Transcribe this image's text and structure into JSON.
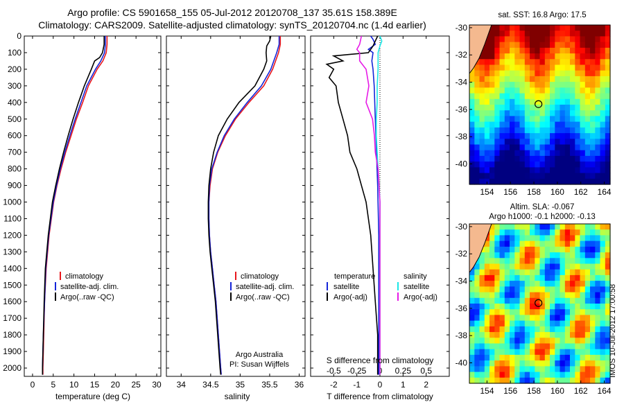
{
  "title": {
    "line1": "Argo profile: CS 5901658_155 05-Jul-2012 20120708_137 35.61S 158.389E",
    "line2": "Climatology: CARS2009. Satellite-adjusted climatology: synTS_20120704.nc (1.4d earlier)"
  },
  "colors": {
    "climatology": "#e8161b",
    "satellite": "#1424d8",
    "argo": "#000000",
    "s_satellite": "#19e6e6",
    "s_argo": "#e61ae6"
  },
  "chart_data": [
    {
      "type": "line",
      "name": "temperature-profile",
      "xlabel": "temperature (deg C)",
      "ylabel": "",
      "xlim": [
        -2,
        31
      ],
      "ylim": [
        2050,
        0
      ],
      "xticks": [
        0,
        5,
        10,
        15,
        20,
        25,
        30
      ],
      "yticks": [
        0,
        100,
        200,
        300,
        400,
        500,
        600,
        700,
        800,
        900,
        1000,
        1100,
        1200,
        1300,
        1400,
        1500,
        1600,
        1700,
        1800,
        1900,
        2000
      ],
      "legend": [
        "climatology",
        "satellite-adj. clim.",
        "Argo(..raw -QC)"
      ],
      "series": [
        {
          "name": "climatology",
          "depth": [
            0,
            50,
            100,
            150,
            200,
            300,
            400,
            500,
            600,
            700,
            800,
            900,
            1000,
            1200,
            1400,
            1600,
            1800,
            2000,
            2040
          ],
          "values": [
            18.0,
            18.0,
            17.8,
            17.0,
            15.6,
            13.5,
            12.1,
            10.6,
            9.3,
            8.0,
            6.9,
            5.9,
            5.1,
            4.0,
            3.3,
            2.9,
            2.7,
            2.5,
            2.5
          ]
        },
        {
          "name": "satellite-adj. clim.",
          "depth": [
            0,
            50,
            100,
            150,
            200,
            300,
            400,
            500,
            600,
            700,
            800,
            900,
            1000,
            1200,
            1400,
            1600,
            1800,
            2000,
            2040
          ],
          "values": [
            17.6,
            17.6,
            17.4,
            16.5,
            15.2,
            13.1,
            11.7,
            10.3,
            9.0,
            7.8,
            6.7,
            5.8,
            5.0,
            3.9,
            3.2,
            2.9,
            2.6,
            2.4,
            2.4
          ]
        },
        {
          "name": "Argo(..raw -QC)",
          "depth": [
            0,
            50,
            100,
            130,
            150,
            200,
            300,
            400,
            500,
            600,
            700,
            800,
            900,
            1000,
            1200,
            1400,
            1600,
            1800,
            2000,
            2040
          ],
          "values": [
            17.3,
            17.3,
            16.9,
            16.2,
            15.0,
            14.2,
            12.5,
            11.1,
            9.8,
            8.6,
            7.5,
            6.5,
            5.6,
            4.8,
            3.8,
            3.1,
            2.8,
            2.6,
            2.4,
            2.4
          ]
        }
      ]
    },
    {
      "type": "line",
      "name": "salinity-profile",
      "xlabel": "salinity",
      "xlim": [
        33.75,
        36.1
      ],
      "ylim": [
        2050,
        0
      ],
      "xticks": [
        34,
        34.5,
        35,
        35.5,
        36
      ],
      "legend": [
        "climatology",
        "satellite-adj. clim.",
        "Argo(..raw -QC)"
      ],
      "annotation": [
        "Argo Australia",
        "PI: Susan Wijffels"
      ],
      "series": [
        {
          "name": "climatology",
          "depth": [
            0,
            50,
            100,
            200,
            300,
            400,
            500,
            600,
            700,
            800,
            900,
            1000,
            1100,
            1200,
            1300,
            1400,
            1500,
            1600,
            1800,
            2000,
            2040
          ],
          "values": [
            35.68,
            35.68,
            35.65,
            35.55,
            35.4,
            35.15,
            34.92,
            34.75,
            34.62,
            34.53,
            34.49,
            34.47,
            34.47,
            34.48,
            34.5,
            34.53,
            34.56,
            34.59,
            34.63,
            34.67,
            34.68
          ]
        },
        {
          "name": "satellite-adj. clim.",
          "depth": [
            0,
            50,
            100,
            200,
            300,
            400,
            500,
            600,
            700,
            800,
            900,
            1000,
            1100,
            1200,
            1300,
            1400,
            1500,
            1600,
            1800,
            2000,
            2040
          ],
          "values": [
            35.66,
            35.66,
            35.62,
            35.52,
            35.36,
            35.12,
            34.9,
            34.73,
            34.61,
            34.52,
            34.48,
            34.47,
            34.47,
            34.48,
            34.5,
            34.53,
            34.56,
            34.59,
            34.63,
            34.67,
            34.68
          ]
        },
        {
          "name": "Argo(..raw -QC)",
          "depth": [
            0,
            30,
            60,
            100,
            150,
            200,
            300,
            400,
            500,
            600,
            700,
            800,
            900,
            1000,
            1100,
            1200,
            1300,
            1400,
            1500,
            1600,
            1800,
            2000,
            2040
          ],
          "values": [
            35.52,
            35.5,
            35.45,
            35.44,
            35.45,
            35.4,
            35.25,
            34.98,
            34.78,
            34.63,
            34.55,
            34.5,
            34.47,
            34.46,
            34.46,
            34.47,
            34.49,
            34.52,
            34.55,
            34.58,
            34.62,
            34.66,
            34.67
          ]
        }
      ]
    },
    {
      "type": "line",
      "name": "difference-profile",
      "xlabel": "T difference from climatology",
      "toplabel": "S difference from climatology",
      "xlim": [
        -3,
        3
      ],
      "ylim": [
        2050,
        0
      ],
      "xticks": [
        -2,
        -1,
        0,
        1,
        2
      ],
      "s_ticks": [
        -0.5,
        -0.25,
        0,
        0.25,
        0.5
      ],
      "legend_temperature": [
        "temperature",
        "satellite",
        "Argo(-adj)"
      ],
      "legend_salinity": [
        "salinity",
        "satellite",
        "Argo(-adj)"
      ],
      "series": [
        {
          "name": "T satellite",
          "depth": [
            0,
            20,
            50,
            80,
            100,
            150,
            200,
            300,
            500,
            700,
            900,
            1200,
            1600,
            2040
          ],
          "values": [
            -0.4,
            -0.3,
            -0.2,
            -0.5,
            -0.3,
            -0.35,
            -0.3,
            -0.25,
            -0.2,
            -0.15,
            -0.1,
            -0.05,
            -0.05,
            -0.05
          ]
        },
        {
          "name": "T Argo(-adj)",
          "depth": [
            0,
            30,
            60,
            100,
            120,
            150,
            170,
            200,
            250,
            300,
            400,
            500,
            600,
            700,
            800,
            900,
            1000,
            1200,
            1400,
            1600,
            1800,
            2000,
            2040
          ],
          "values": [
            -0.1,
            -0.2,
            -0.3,
            -0.5,
            -2.0,
            -1.6,
            -2.3,
            -2.0,
            -2.2,
            -1.9,
            -1.8,
            -1.6,
            -1.4,
            -1.3,
            -1.0,
            -0.8,
            -0.6,
            -0.4,
            -0.3,
            -0.2,
            -0.1,
            -0.1,
            -0.1
          ]
        },
        {
          "name": "S satellite",
          "depth": [
            0,
            30,
            60,
            100,
            200,
            300,
            400,
            500,
            600,
            700,
            800,
            900,
            1000,
            1200,
            1600,
            2040
          ],
          "values": [
            0.0,
            0.02,
            0.0,
            -0.02,
            -0.02,
            -0.03,
            -0.03,
            -0.04,
            -0.04,
            -0.03,
            -0.02,
            -0.01,
            0.0,
            0.0,
            0.0,
            0.0
          ]
        },
        {
          "name": "S Argo(-adj)",
          "depth": [
            0,
            50,
            80,
            100,
            150,
            200,
            300,
            400,
            500,
            600,
            700,
            800,
            900,
            1000,
            1100,
            1200,
            1400,
            1600,
            2040
          ],
          "values": [
            -0.2,
            -0.22,
            -0.25,
            -0.22,
            -0.22,
            -0.15,
            -0.12,
            -0.15,
            -0.08,
            -0.06,
            -0.05,
            -0.02,
            -0.01,
            0.0,
            0.0,
            0.0,
            0.0,
            0.0,
            0.0
          ]
        }
      ]
    },
    {
      "type": "heatmap",
      "name": "sst-map",
      "title": "sat. SST: 16.8 Argo: 17.5",
      "xlim": [
        152.5,
        164.5
      ],
      "ylim": [
        -41.5,
        -29.8
      ],
      "xticks": [
        154,
        156,
        158,
        160,
        162,
        164
      ],
      "yticks": [
        -30,
        -32,
        -34,
        -36,
        -38,
        -40
      ],
      "marker": {
        "lon": 158.389,
        "lat": -35.61
      }
    },
    {
      "type": "heatmap",
      "name": "sla-map",
      "title_line1": "Altim. SLA: -0.067",
      "title_line2": "Argo h1000: -0.1 h2000: -0.13",
      "xlim": [
        152.5,
        164.5
      ],
      "ylim": [
        -41.5,
        -29.8
      ],
      "xticks": [
        154,
        156,
        158,
        160,
        162,
        164
      ],
      "yticks": [
        -30,
        -32,
        -34,
        -36,
        -38,
        -40
      ],
      "marker": {
        "lon": 158.389,
        "lat": -35.61
      }
    }
  ],
  "stamp": "IMOS 10-Jul-2012 17:00:58"
}
